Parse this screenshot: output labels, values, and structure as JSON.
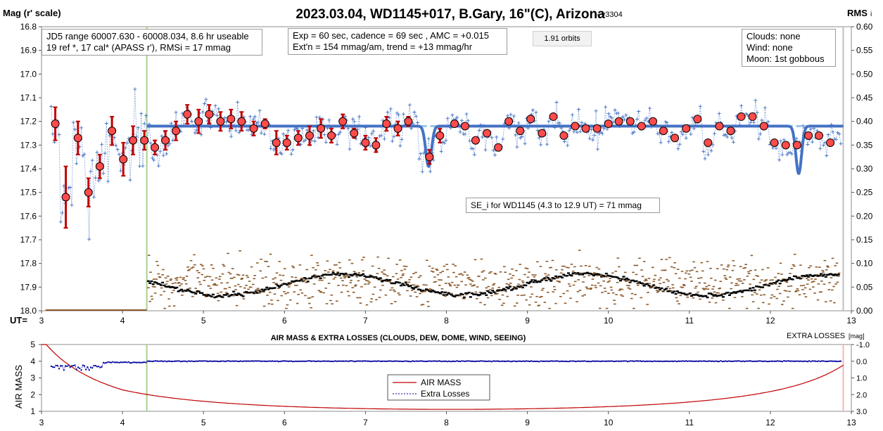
{
  "header": {
    "title": "2023.03.04, WD1145+017, B.Gary, 16\"(C), Arizona",
    "version": "- v3304",
    "left_axis_label": "Mag (r' scale)",
    "right_axis_label": "RMS",
    "right_axis_suffix": "i",
    "ut_label": "UT="
  },
  "info_boxes": {
    "range_line1": "JD5 range 60007.630 - 60008.034, 8.6 hr useable",
    "range_line2": "19 ref *, 17 cal*  (APASS r'), RMSi = 17 mmag",
    "exp_line1": "Exp = 60 sec, cadence = 69 sec , AMC = +0.015",
    "exp_line2": "Ext'n = 154 mmag/am, trend = +13 mmag/hr",
    "orbits": "1.91 orbits",
    "clouds": "Clouds: none",
    "wind": "Wind:    none",
    "moon": "Moon:    1st gobbous",
    "se": "SE_i for WD1145 (4.3 to 12.9 UT) = 71 mmag"
  },
  "lower": {
    "title": "AIR MASS & EXTRA LOSSES (CLOUDS, DEW, DOME, WIND, SEEING)",
    "right_label": "EXTRA LOSSES",
    "right_unit": "[mag]",
    "left_axis_label": "AIR MASS",
    "legend_airmass": "AIR MASS",
    "legend_losses": "Extra Losses"
  },
  "chart_data": [
    {
      "type": "scatter",
      "xlim": [
        3,
        13
      ],
      "ylim": [
        16.8,
        18.0
      ],
      "y2lim": [
        0.0,
        0.6
      ],
      "x_ticks": [
        3,
        4,
        5,
        6,
        7,
        8,
        9,
        10,
        11,
        12,
        13
      ],
      "y_ticks": [
        "16.8",
        "16.9",
        "17.0",
        "17.1",
        "17.2",
        "17.3",
        "17.4",
        "17.5",
        "17.6",
        "17.7",
        "17.8",
        "17.9",
        "18.0"
      ],
      "y2_ticks": [
        "0.60",
        "0.55",
        "0.50",
        "0.45",
        "0.40",
        "0.35",
        "0.30",
        "0.25",
        "0.20",
        "0.15",
        "0.10",
        "0.05",
        "0.00"
      ],
      "vertical_markers": [
        4.3,
        12.9
      ],
      "binned_points": [
        {
          "x": 3.17,
          "y": 17.21,
          "err": 0.07
        },
        {
          "x": 3.3,
          "y": 17.52,
          "err": 0.13
        },
        {
          "x": 3.45,
          "y": 17.27,
          "err": 0.07
        },
        {
          "x": 3.58,
          "y": 17.5,
          "err": 0.06
        },
        {
          "x": 3.72,
          "y": 17.39,
          "err": 0.05
        },
        {
          "x": 3.87,
          "y": 17.24,
          "err": 0.06
        },
        {
          "x": 4.01,
          "y": 17.36,
          "err": 0.07
        },
        {
          "x": 4.13,
          "y": 17.28,
          "err": 0.06
        },
        {
          "x": 4.27,
          "y": 17.28,
          "err": 0.04
        },
        {
          "x": 4.4,
          "y": 17.31,
          "err": 0.03
        },
        {
          "x": 4.53,
          "y": 17.28,
          "err": 0.04
        },
        {
          "x": 4.66,
          "y": 17.24,
          "err": 0.04
        },
        {
          "x": 4.8,
          "y": 17.17,
          "err": 0.04
        },
        {
          "x": 4.94,
          "y": 17.2,
          "err": 0.05
        },
        {
          "x": 5.07,
          "y": 17.17,
          "err": 0.04
        },
        {
          "x": 5.21,
          "y": 17.2,
          "err": 0.04
        },
        {
          "x": 5.34,
          "y": 17.19,
          "err": 0.04
        },
        {
          "x": 5.47,
          "y": 17.2,
          "err": 0.04
        },
        {
          "x": 5.62,
          "y": 17.23,
          "err": 0.03
        },
        {
          "x": 5.76,
          "y": 17.21,
          "err": 0.02
        },
        {
          "x": 5.9,
          "y": 17.29,
          "err": 0.05
        },
        {
          "x": 6.03,
          "y": 17.29,
          "err": 0.03
        },
        {
          "x": 6.17,
          "y": 17.27,
          "err": 0.03
        },
        {
          "x": 6.31,
          "y": 17.26,
          "err": 0.04
        },
        {
          "x": 6.45,
          "y": 17.23,
          "err": 0.04
        },
        {
          "x": 6.58,
          "y": 17.26,
          "err": 0.03
        },
        {
          "x": 6.72,
          "y": 17.2,
          "err": 0.03
        },
        {
          "x": 6.86,
          "y": 17.25,
          "err": 0.02
        },
        {
          "x": 7.0,
          "y": 17.29,
          "err": 0.03
        },
        {
          "x": 7.13,
          "y": 17.3,
          "err": 0.03
        },
        {
          "x": 7.26,
          "y": 17.21,
          "err": 0.03
        },
        {
          "x": 7.4,
          "y": 17.23,
          "err": 0.03
        },
        {
          "x": 7.53,
          "y": 17.2,
          "err": 0.02
        },
        {
          "x": 7.79,
          "y": 17.35,
          "err": 0.03
        },
        {
          "x": 7.92,
          "y": 17.26,
          "err": 0.03
        },
        {
          "x": 8.1,
          "y": 17.21,
          "err": 0
        },
        {
          "x": 8.23,
          "y": 17.22,
          "err": 0
        },
        {
          "x": 8.36,
          "y": 17.28,
          "err": 0
        },
        {
          "x": 8.5,
          "y": 17.25,
          "err": 0
        },
        {
          "x": 8.64,
          "y": 17.31,
          "err": 0
        },
        {
          "x": 8.77,
          "y": 17.2,
          "err": 0
        },
        {
          "x": 8.91,
          "y": 17.24,
          "err": 0
        },
        {
          "x": 9.04,
          "y": 17.19,
          "err": 0
        },
        {
          "x": 9.18,
          "y": 17.25,
          "err": 0
        },
        {
          "x": 9.32,
          "y": 17.18,
          "err": 0
        },
        {
          "x": 9.45,
          "y": 17.26,
          "err": 0
        },
        {
          "x": 9.59,
          "y": 17.22,
          "err": 0
        },
        {
          "x": 9.72,
          "y": 17.23,
          "err": 0
        },
        {
          "x": 9.86,
          "y": 17.23,
          "err": 0
        },
        {
          "x": 10.0,
          "y": 17.21,
          "err": 0
        },
        {
          "x": 10.13,
          "y": 17.2,
          "err": 0
        },
        {
          "x": 10.27,
          "y": 17.2,
          "err": 0
        },
        {
          "x": 10.41,
          "y": 17.22,
          "err": 0
        },
        {
          "x": 10.55,
          "y": 17.2,
          "err": 0
        },
        {
          "x": 10.68,
          "y": 17.24,
          "err": 0
        },
        {
          "x": 10.82,
          "y": 17.27,
          "err": 0
        },
        {
          "x": 10.96,
          "y": 17.23,
          "err": 0
        },
        {
          "x": 11.1,
          "y": 17.19,
          "err": 0
        },
        {
          "x": 11.23,
          "y": 17.29,
          "err": 0
        },
        {
          "x": 11.37,
          "y": 17.22,
          "err": 0
        },
        {
          "x": 11.51,
          "y": 17.24,
          "err": 0
        },
        {
          "x": 11.64,
          "y": 17.18,
          "err": 0
        },
        {
          "x": 11.78,
          "y": 17.18,
          "err": 0
        },
        {
          "x": 11.92,
          "y": 17.22,
          "err": 0
        },
        {
          "x": 12.05,
          "y": 17.29,
          "err": 0
        },
        {
          "x": 12.19,
          "y": 17.3,
          "err": 0
        },
        {
          "x": 12.33,
          "y": 17.3,
          "err": 0
        },
        {
          "x": 12.47,
          "y": 17.26,
          "err": 0
        },
        {
          "x": 12.6,
          "y": 17.26,
          "err": 0
        },
        {
          "x": 12.74,
          "y": 17.29,
          "err": 0
        }
      ],
      "model": {
        "baseline": 17.22,
        "start": 4.3,
        "end": 12.9,
        "dips": [
          {
            "center": 7.78,
            "depth": 0.17,
            "width": 0.05
          },
          {
            "center": 12.35,
            "depth": 0.2,
            "width": 0.05
          }
        ]
      }
    },
    {
      "type": "line",
      "xlim": [
        3,
        13
      ],
      "ylim": [
        1,
        5
      ],
      "y2lim": [
        3.0,
        -1.0
      ],
      "x_ticks": [
        3,
        4,
        5,
        6,
        7,
        8,
        9,
        10,
        11,
        12,
        13
      ],
      "y_ticks": [
        "1",
        "2",
        "3",
        "4",
        "5"
      ],
      "y2_ticks": [
        "3.0",
        "2.0",
        "1.0",
        "0.0",
        "-1.0"
      ],
      "vertical_markers": [
        4.3,
        12.9
      ],
      "airmass_model": {
        "min_x": 8.05,
        "min_value": 1.13
      },
      "extra_losses_baseline": 0.0
    }
  ]
}
